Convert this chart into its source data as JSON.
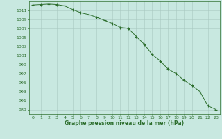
{
  "x": [
    0,
    1,
    2,
    3,
    4,
    5,
    6,
    7,
    8,
    9,
    10,
    11,
    12,
    13,
    14,
    15,
    16,
    17,
    18,
    19,
    20,
    21,
    22,
    23
  ],
  "y": [
    1012.2,
    1012.3,
    1012.4,
    1012.3,
    1012.0,
    1011.2,
    1010.5,
    1010.1,
    1009.5,
    1008.8,
    1008.1,
    1007.2,
    1007.0,
    1005.2,
    1003.5,
    1001.2,
    999.8,
    998.0,
    997.0,
    995.5,
    994.3,
    993.0,
    989.8,
    989.0
  ],
  "line_color": "#2d6e2d",
  "marker_color": "#2d6e2d",
  "bg_color": "#c8e8e0",
  "grid_color": "#a8c8c0",
  "xlabel": "Graphe pression niveau de la mer (hPa)",
  "xlabel_color": "#2d6e2d",
  "tick_color": "#2d6e2d",
  "ylim": [
    988,
    1013
  ],
  "xlim": [
    -0.5,
    23.5
  ],
  "yticks": [
    989,
    991,
    993,
    995,
    997,
    999,
    1001,
    1003,
    1005,
    1007,
    1009,
    1011
  ],
  "xticks": [
    0,
    1,
    2,
    3,
    4,
    5,
    6,
    7,
    8,
    9,
    10,
    11,
    12,
    13,
    14,
    15,
    16,
    17,
    18,
    19,
    20,
    21,
    22,
    23
  ]
}
